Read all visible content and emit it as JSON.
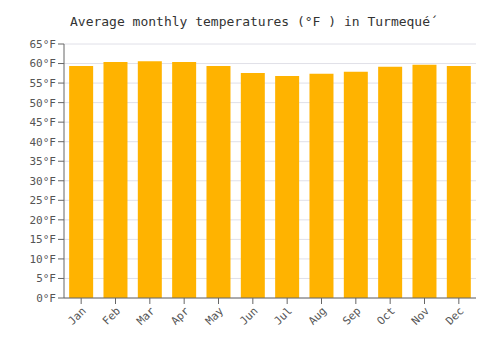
{
  "chart_data": {
    "type": "bar",
    "title": "Average monthly temperatures (°F ) in Turmequé́",
    "categories": [
      "Jan",
      "Feb",
      "Mar",
      "Apr",
      "May",
      "Jun",
      "Jul",
      "Aug",
      "Sep",
      "Oct",
      "Nov",
      "Dec"
    ],
    "values": [
      59.4,
      60.4,
      60.6,
      60.4,
      59.4,
      57.6,
      56.8,
      57.4,
      57.9,
      59.2,
      59.7,
      59.4
    ],
    "color": "#FFB300",
    "ylim": [
      0,
      65
    ],
    "yticks": [
      {
        "value": 0,
        "label": "0°F"
      },
      {
        "value": 5,
        "label": "5°F"
      },
      {
        "value": 10,
        "label": "10°F"
      },
      {
        "value": 15,
        "label": "15°F"
      },
      {
        "value": 20,
        "label": "20°F"
      },
      {
        "value": 25,
        "label": "25°F"
      },
      {
        "value": 30,
        "label": "30°F"
      },
      {
        "value": 35,
        "label": "35°F"
      },
      {
        "value": 40,
        "label": "40°F"
      },
      {
        "value": 45,
        "label": "45°F"
      },
      {
        "value": 50,
        "label": "50°F"
      },
      {
        "value": 55,
        "label": "55°F"
      },
      {
        "value": 60,
        "label": "60°F"
      },
      {
        "value": 65,
        "label": "65°F"
      }
    ],
    "grid": true
  }
}
